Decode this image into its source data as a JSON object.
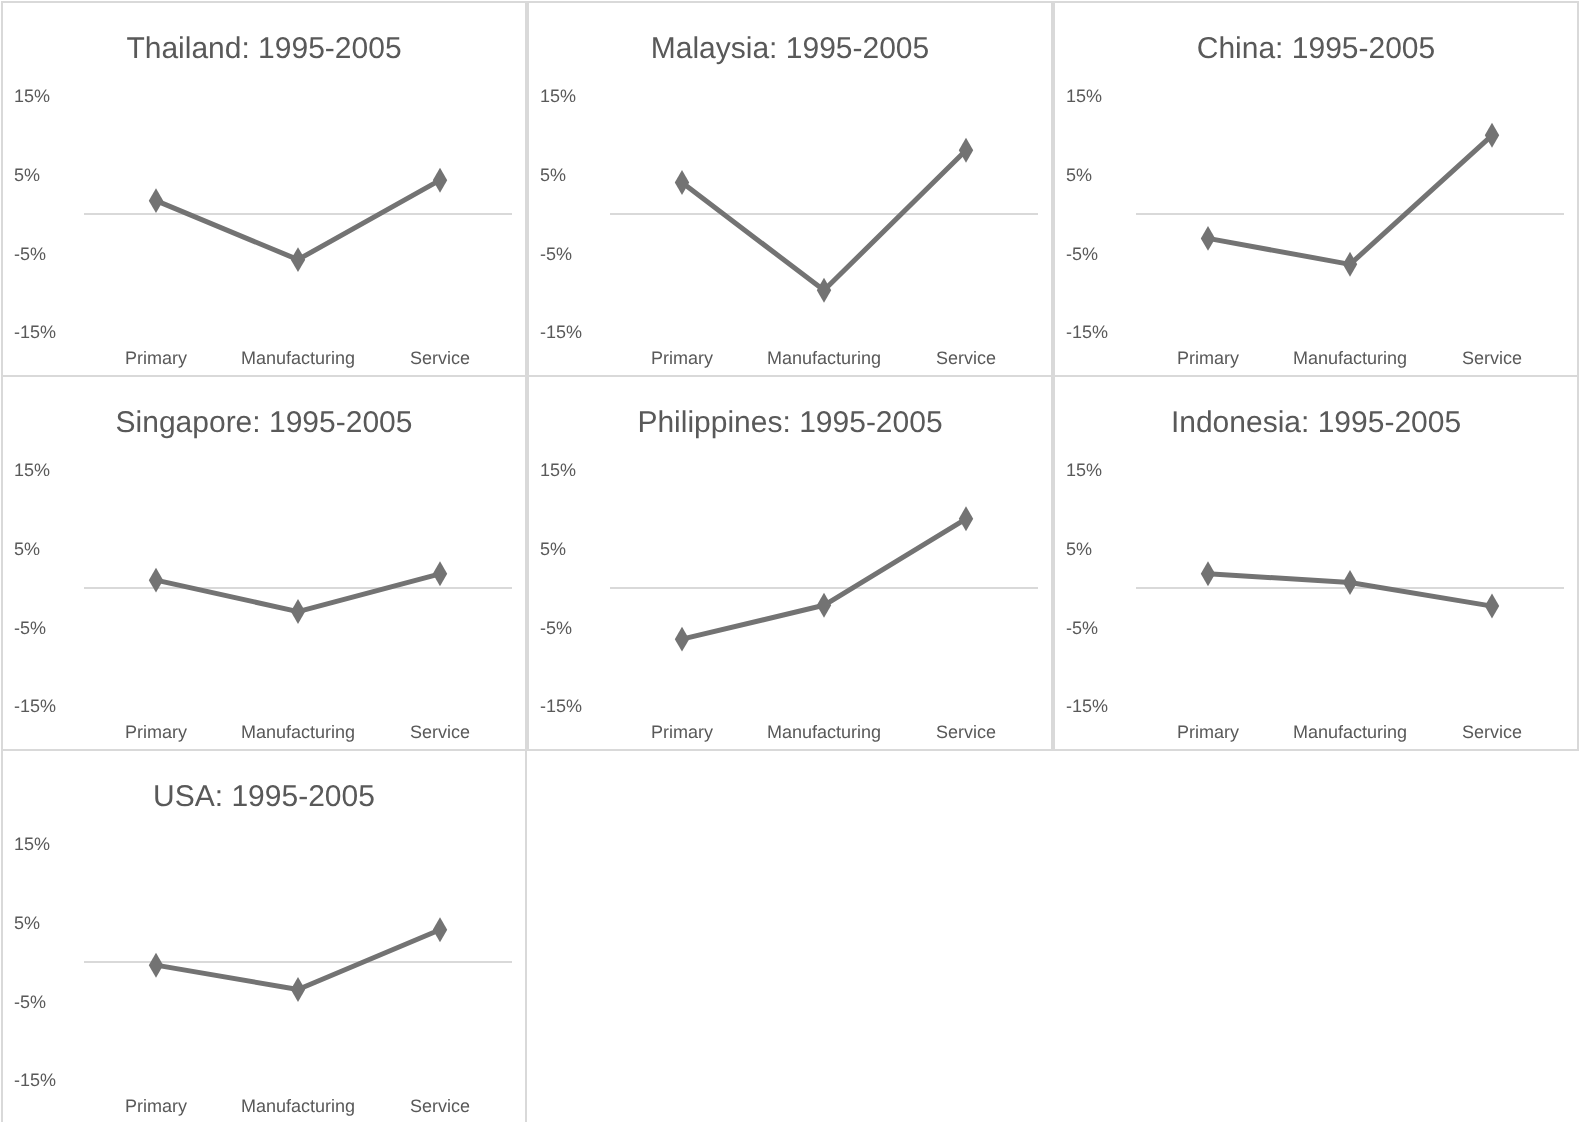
{
  "chart_data": [
    {
      "type": "line",
      "title": "Thailand: 1995-2005",
      "categories": [
        "Primary",
        "Manufacturing",
        "Service"
      ],
      "values": [
        1.7,
        -5.8,
        4.3
      ],
      "color": "#737373",
      "marker": "diamond",
      "ylim": [
        -15,
        15
      ],
      "yticks": [
        {
          "value": 15,
          "label": "15%"
        },
        {
          "value": 5,
          "label": "5%"
        },
        {
          "value": -5,
          "label": "-5%"
        },
        {
          "value": -15,
          "label": "-15%"
        }
      ]
    },
    {
      "type": "line",
      "title": "Malaysia: 1995-2005",
      "categories": [
        "Primary",
        "Manufacturing",
        "Service"
      ],
      "values": [
        4.0,
        -9.7,
        8.1
      ],
      "color": "#737373",
      "marker": "diamond",
      "ylim": [
        -15,
        15
      ],
      "yticks": [
        {
          "value": 15,
          "label": "15%"
        },
        {
          "value": 5,
          "label": "5%"
        },
        {
          "value": -5,
          "label": "-5%"
        },
        {
          "value": -15,
          "label": "-15%"
        }
      ]
    },
    {
      "type": "line",
      "title": "China: 1995-2005",
      "categories": [
        "Primary",
        "Manufacturing",
        "Service"
      ],
      "values": [
        -3.1,
        -6.4,
        10.0
      ],
      "color": "#737373",
      "marker": "diamond",
      "ylim": [
        -15,
        15
      ],
      "yticks": [
        {
          "value": 15,
          "label": "15%"
        },
        {
          "value": 5,
          "label": "5%"
        },
        {
          "value": -5,
          "label": "-5%"
        },
        {
          "value": -15,
          "label": "-15%"
        }
      ]
    },
    {
      "type": "line",
      "title": "Singapore: 1995-2005",
      "categories": [
        "Primary",
        "Manufacturing",
        "Service"
      ],
      "values": [
        1.0,
        -3.0,
        1.8
      ],
      "color": "#737373",
      "marker": "diamond",
      "ylim": [
        -15,
        15
      ],
      "yticks": [
        {
          "value": 15,
          "label": "15%"
        },
        {
          "value": 5,
          "label": "5%"
        },
        {
          "value": -5,
          "label": "-5%"
        },
        {
          "value": -15,
          "label": "-15%"
        }
      ]
    },
    {
      "type": "line",
      "title": "Philippines: 1995-2005",
      "categories": [
        "Primary",
        "Manufacturing",
        "Service"
      ],
      "values": [
        -6.5,
        -2.2,
        8.8
      ],
      "color": "#737373",
      "marker": "diamond",
      "ylim": [
        -15,
        15
      ],
      "yticks": [
        {
          "value": 15,
          "label": "15%"
        },
        {
          "value": 5,
          "label": "5%"
        },
        {
          "value": -5,
          "label": "-5%"
        },
        {
          "value": -15,
          "label": "-15%"
        }
      ]
    },
    {
      "type": "line",
      "title": "Indonesia: 1995-2005",
      "categories": [
        "Primary",
        "Manufacturing",
        "Service"
      ],
      "values": [
        1.8,
        0.7,
        -2.3
      ],
      "color": "#737373",
      "marker": "diamond",
      "ylim": [
        -15,
        15
      ],
      "yticks": [
        {
          "value": 15,
          "label": "15%"
        },
        {
          "value": 5,
          "label": "5%"
        },
        {
          "value": -5,
          "label": "-5%"
        },
        {
          "value": -15,
          "label": "-15%"
        }
      ]
    },
    {
      "type": "line",
      "title": "USA: 1995-2005",
      "categories": [
        "Primary",
        "Manufacturing",
        "Service"
      ],
      "values": [
        -0.4,
        -3.5,
        4.1
      ],
      "color": "#737373",
      "marker": "diamond",
      "ylim": [
        -15,
        15
      ],
      "yticks": [
        {
          "value": 15,
          "label": "15%"
        },
        {
          "value": 5,
          "label": "5%"
        },
        {
          "value": -5,
          "label": "-5%"
        },
        {
          "value": -15,
          "label": "-15%"
        }
      ]
    }
  ]
}
